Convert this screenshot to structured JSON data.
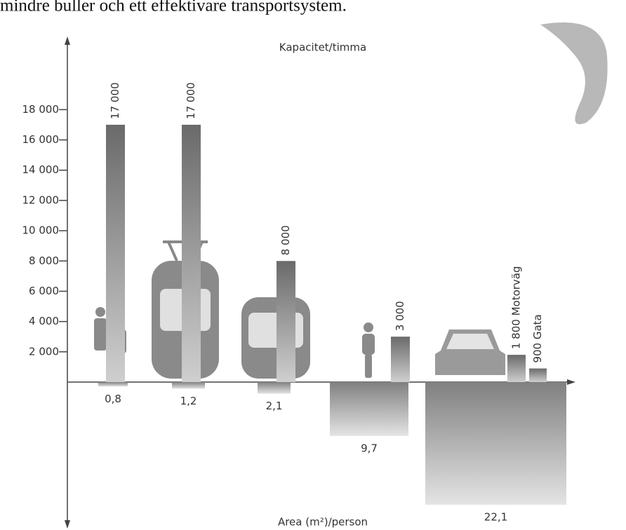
{
  "caption": "mindre buller och ett effektivare transportsystem.",
  "chart_data": [
    {
      "type": "bar",
      "title": "Kapacitet/timma",
      "values": [
        17000,
        17000,
        8000,
        3000,
        1800,
        900
      ],
      "value_labels": [
        "17 000",
        "17 000",
        "8 000",
        "3 000",
        "1 800 Motorväg",
        "900 Gata"
      ],
      "color": "#777777",
      "ylim": [
        0,
        22000
      ],
      "yticks": [
        {
          "value": 2000,
          "label": "2 000"
        },
        {
          "value": 4000,
          "label": "4 000"
        },
        {
          "value": 6000,
          "label": "6 000"
        },
        {
          "value": 8000,
          "label": "8 000"
        },
        {
          "value": 10000,
          "label": "10 000"
        },
        {
          "value": 12000,
          "label": "12 000"
        },
        {
          "value": 14000,
          "label": "14 000"
        },
        {
          "value": 16000,
          "label": "16 000"
        },
        {
          "value": 18000,
          "label": "18 000"
        }
      ]
    },
    {
      "type": "bar-down",
      "title": "Area (m²)/person",
      "values": [
        0.8,
        1.2,
        2.1,
        9.7,
        22.1
      ],
      "value_labels": [
        "0,8",
        "1,2",
        "2,1",
        "9,7",
        "22,1"
      ],
      "color": "#888888",
      "ylim": [
        0,
        24
      ]
    }
  ]
}
